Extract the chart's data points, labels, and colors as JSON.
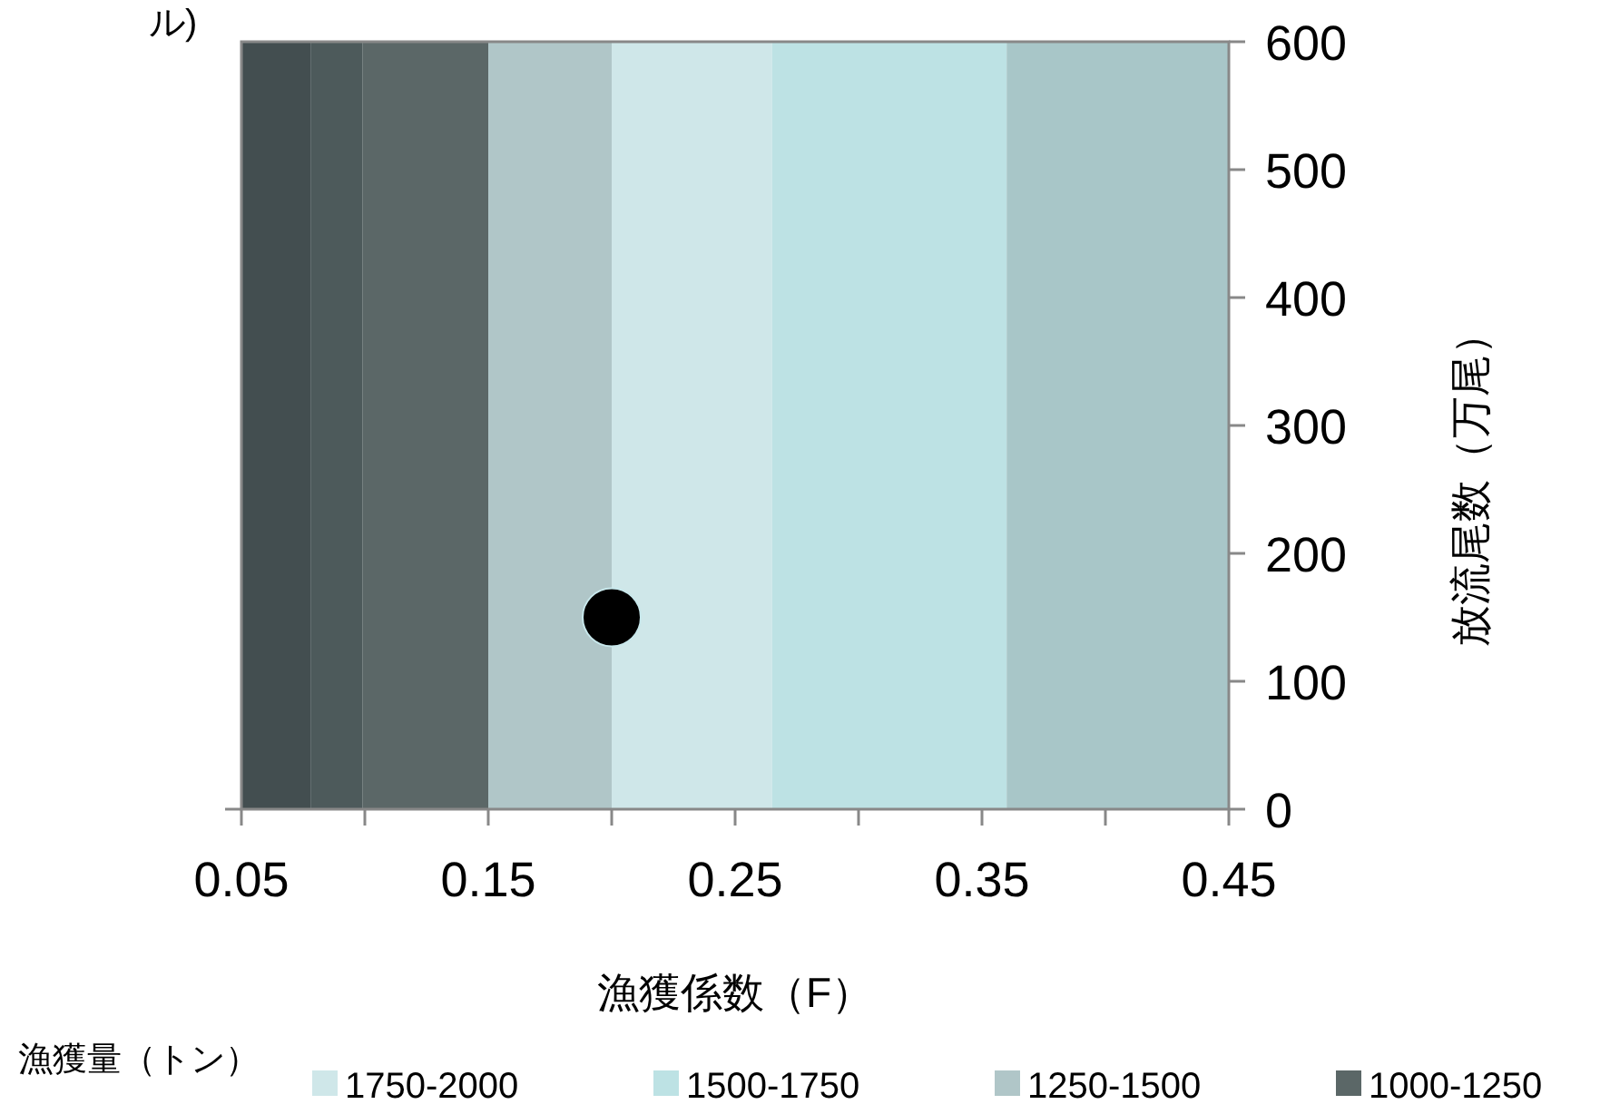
{
  "chart_data": {
    "type": "scatter",
    "xlabel": "漁獲係数（F）",
    "ylabel": "放流尾数（万尾）",
    "legend_title": "漁獲量（トン）",
    "legend": "bottom",
    "marker": "circle",
    "grid": false,
    "annotations": [
      "ル)"
    ],
    "xlim": [
      0.05,
      0.45
    ],
    "xticks": [
      0.05,
      {
        "value": 0.1,
        "label": null
      },
      0.15,
      {
        "value": 0.2,
        "label": null
      },
      0.25,
      {
        "value": 0.3,
        "label": null
      },
      0.35,
      {
        "value": 0.4,
        "label": null
      },
      0.45
    ],
    "ylim": [
      0,
      600
    ],
    "yticks": [
      0,
      100,
      200,
      300,
      400,
      500,
      600
    ],
    "bands": [
      {
        "axis": "x",
        "from": 0.2,
        "to": 0.265,
        "label": "1750-2000",
        "color": "#cfe7e9"
      },
      {
        "axis": "x",
        "from": 0.265,
        "to": 0.36,
        "label": "1500-1750",
        "color": "#bde2e4"
      },
      {
        "axis": "x",
        "from": 0.15,
        "to": 0.2,
        "label": "1250-1500",
        "color": "#b0c6c8"
      },
      {
        "axis": "x",
        "from": 0.36,
        "to": 0.45,
        "color": "#a8c6c8"
      },
      {
        "axis": "x",
        "from": 0.099,
        "to": 0.15,
        "label": "1000-1250",
        "color": "#5b6767"
      },
      {
        "axis": "x",
        "from": 0.05,
        "to": 0.078,
        "color": "#434e50"
      },
      {
        "axis": "x",
        "from": 0.078,
        "to": 0.099,
        "color": "#4d5a5b"
      }
    ],
    "series": [
      {
        "color": "#000000",
        "x": [
          0.2
        ],
        "values": [
          150
        ]
      }
    ]
  }
}
